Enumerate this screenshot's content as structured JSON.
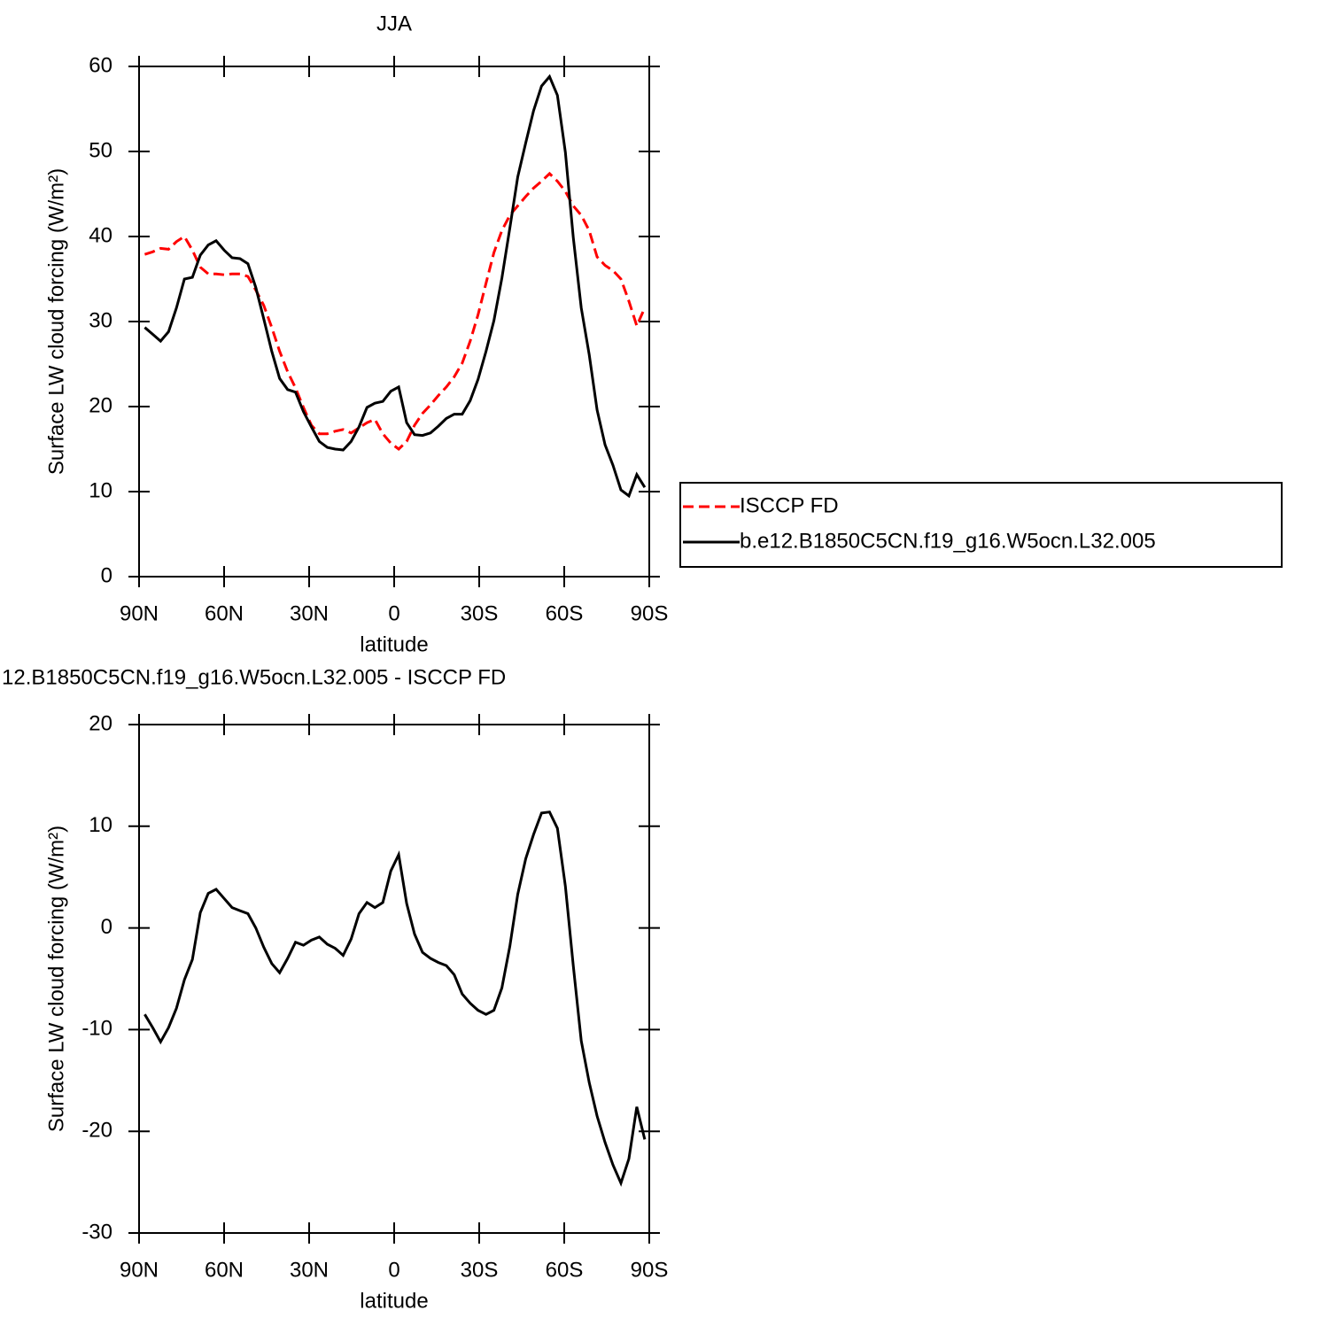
{
  "chart_data": [
    {
      "type": "line",
      "title": "JJA",
      "xlabel": "latitude",
      "ylabel": "Surface LW cloud forcing (W/m²)",
      "x": [
        88,
        85.2,
        82.4,
        79.6,
        76.8,
        74,
        71.2,
        68.4,
        65.6,
        62.8,
        60,
        57.2,
        54.4,
        51.6,
        48.8,
        46,
        43.2,
        40.4,
        37.6,
        34.8,
        32,
        29.2,
        26.4,
        23.6,
        20.8,
        18,
        15.2,
        12.4,
        9.6,
        6.8,
        4,
        1.2,
        -1.6,
        -4.4,
        -7.2,
        -10,
        -12.8,
        -15.6,
        -18.4,
        -21.2,
        -24,
        -26.8,
        -29.6,
        -32.4,
        -35.2,
        -38,
        -40.8,
        -43.6,
        -46.4,
        -49.2,
        -52,
        -54.8,
        -57.6,
        -60.4,
        -63.2,
        -66,
        -68.8,
        -71.6,
        -74.4,
        -77.2,
        -80,
        -82.8,
        -85.6,
        -88.4
      ],
      "series": [
        {
          "name": "ISCCP FD",
          "color": "#ff0000",
          "style": "dashed",
          "values": [
            37.9,
            38.2,
            38.6,
            38.5,
            39.4,
            40,
            38.4,
            36.4,
            35.6,
            35.6,
            35.5,
            35.6,
            35.6,
            35.3,
            33.7,
            31.9,
            29.3,
            26.5,
            24.1,
            22.2,
            19.9,
            17.8,
            16.8,
            16.8,
            17.1,
            17.3,
            16.9,
            17.5,
            18.1,
            18.5,
            16.8,
            15.7,
            15,
            15.9,
            17.8,
            19.2,
            20.2,
            21.3,
            22.3,
            23.5,
            25.1,
            27.7,
            30.8,
            34.5,
            38.1,
            40.7,
            42.5,
            43.6,
            44.7,
            45.7,
            46.5,
            47.4,
            46.5,
            45.3,
            43.6,
            42.5,
            40.7,
            37.6,
            36.6,
            36,
            35,
            32.4,
            29.5,
            31.6
          ]
        },
        {
          "name": "b.e12.B1850C5CN.f19_g16.W5ocn.L32.005",
          "color": "#000000",
          "style": "solid",
          "values": [
            29.3,
            28.5,
            27.7,
            28.8,
            31.6,
            35,
            35.2,
            37.8,
            39,
            39.5,
            38.4,
            37.5,
            37.4,
            36.8,
            34,
            30.3,
            26.5,
            23.3,
            22,
            21.7,
            19.4,
            17.6,
            15.9,
            15.2,
            15,
            14.9,
            15.9,
            17.6,
            19.9,
            20.4,
            20.6,
            21.8,
            22.3,
            18.1,
            16.7,
            16.6,
            16.9,
            17.7,
            18.6,
            19.1,
            19.1,
            20.7,
            23.2,
            26.5,
            30.1,
            35.1,
            41,
            47,
            51,
            54.8,
            57.7,
            58.8,
            56.6,
            49.9,
            39.9,
            31.6,
            26.1,
            19.6,
            15.5,
            13.1,
            10.2,
            9.5,
            12,
            10.5
          ]
        }
      ],
      "xlim": [
        90,
        -90
      ],
      "xticks": [
        {
          "value": 90,
          "label": "90N"
        },
        {
          "value": 60,
          "label": "60N"
        },
        {
          "value": 30,
          "label": "30N"
        },
        0,
        {
          "value": -30,
          "label": "30S"
        },
        {
          "value": -60,
          "label": "60S"
        },
        {
          "value": -90,
          "label": "90S"
        }
      ],
      "ylim": [
        0,
        60
      ],
      "yticks": [
        0,
        10,
        20,
        30,
        40,
        50,
        60
      ],
      "legend": "right"
    },
    {
      "type": "line",
      "title": "12.B1850C5CN.f19_g16.W5ocn.L32.005 - ISCCP FD",
      "xlabel": "latitude",
      "ylabel": "Surface LW cloud forcing (W/m²)",
      "x": [
        88,
        85.2,
        82.4,
        79.6,
        76.8,
        74,
        71.2,
        68.4,
        65.6,
        62.8,
        60,
        57.2,
        54.4,
        51.6,
        48.8,
        46,
        43.2,
        40.4,
        37.6,
        34.8,
        32,
        29.2,
        26.4,
        23.6,
        20.8,
        18,
        15.2,
        12.4,
        9.6,
        6.8,
        4,
        1.2,
        -1.6,
        -4.4,
        -7.2,
        -10,
        -12.8,
        -15.6,
        -18.4,
        -21.2,
        -24,
        -26.8,
        -29.6,
        -32.4,
        -35.2,
        -38,
        -40.8,
        -43.6,
        -46.4,
        -49.2,
        -52,
        -54.8,
        -57.6,
        -60.4,
        -63.2,
        -66,
        -68.8,
        -71.6,
        -74.4,
        -77.2,
        -80,
        -82.8,
        -85.6,
        -88.4
      ],
      "series": [
        {
          "color": "#000000",
          "style": "solid",
          "values": [
            -8.5,
            -9.8,
            -11.2,
            -9.8,
            -7.9,
            -5.1,
            -3.1,
            1.5,
            3.4,
            3.8,
            2.9,
            2,
            1.7,
            1.4,
            0,
            -1.9,
            -3.5,
            -4.4,
            -3,
            -1.4,
            -1.7,
            -1.2,
            -0.9,
            -1.6,
            -2,
            -2.7,
            -1.1,
            1.4,
            2.5,
            2,
            2.5,
            5.6,
            7.2,
            2.4,
            -0.6,
            -2.4,
            -3,
            -3.4,
            -3.7,
            -4.6,
            -6.5,
            -7.4,
            -8.1,
            -8.5,
            -8.1,
            -5.9,
            -1.8,
            3.3,
            6.8,
            9.2,
            11.3,
            11.4,
            9.8,
            4.1,
            -3.7,
            -11.1,
            -15.2,
            -18.5,
            -21.1,
            -23.3,
            -25.1,
            -22.7,
            -17.6,
            -20.8
          ]
        }
      ],
      "xlim": [
        90,
        -90
      ],
      "xticks": [
        {
          "value": 90,
          "label": "90N"
        },
        {
          "value": 60,
          "label": "60N"
        },
        {
          "value": 30,
          "label": "30N"
        },
        0,
        {
          "value": -30,
          "label": "30S"
        },
        {
          "value": -60,
          "label": "60S"
        },
        {
          "value": -90,
          "label": "90S"
        }
      ],
      "ylim": [
        -30,
        20
      ],
      "yticks": [
        -30,
        -20,
        -10,
        0,
        10,
        20
      ]
    }
  ]
}
